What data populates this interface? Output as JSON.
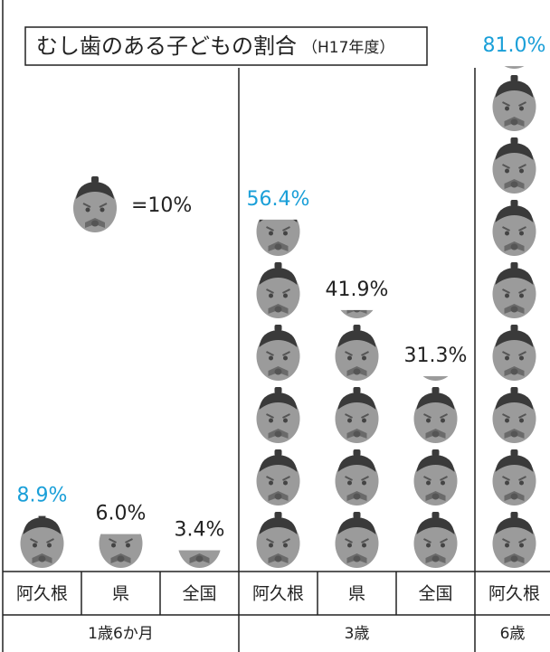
{
  "chart_data": {
    "type": "pictograph",
    "title": "むし歯のある子どもの割合",
    "subtitle": "（H17年度）",
    "icon_unit": {
      "value": 10,
      "label": "=10%"
    },
    "ylim": [
      0,
      100
    ],
    "groups": [
      {
        "name": "1歳6か月",
        "categories": [
          "阿久根",
          "県",
          "全国"
        ],
        "values": [
          8.9,
          6.0,
          3.4
        ],
        "value_labels": [
          "8.9%",
          "6.0%",
          "3.4%"
        ],
        "colors": [
          "#1a9fd8",
          "#222222",
          "#222222"
        ]
      },
      {
        "name": "3歳",
        "categories": [
          "阿久根",
          "県",
          "全国"
        ],
        "values": [
          56.4,
          41.9,
          31.3
        ],
        "value_labels": [
          "56.4%",
          "41.9%",
          "31.3%"
        ],
        "colors": [
          "#1a9fd8",
          "#222222",
          "#222222"
        ]
      },
      {
        "name": "6歳",
        "categories": [
          "阿久根"
        ],
        "values": [
          81.0
        ],
        "value_labels": [
          "81.0%"
        ],
        "colors": [
          "#1a9fd8"
        ]
      }
    ]
  }
}
